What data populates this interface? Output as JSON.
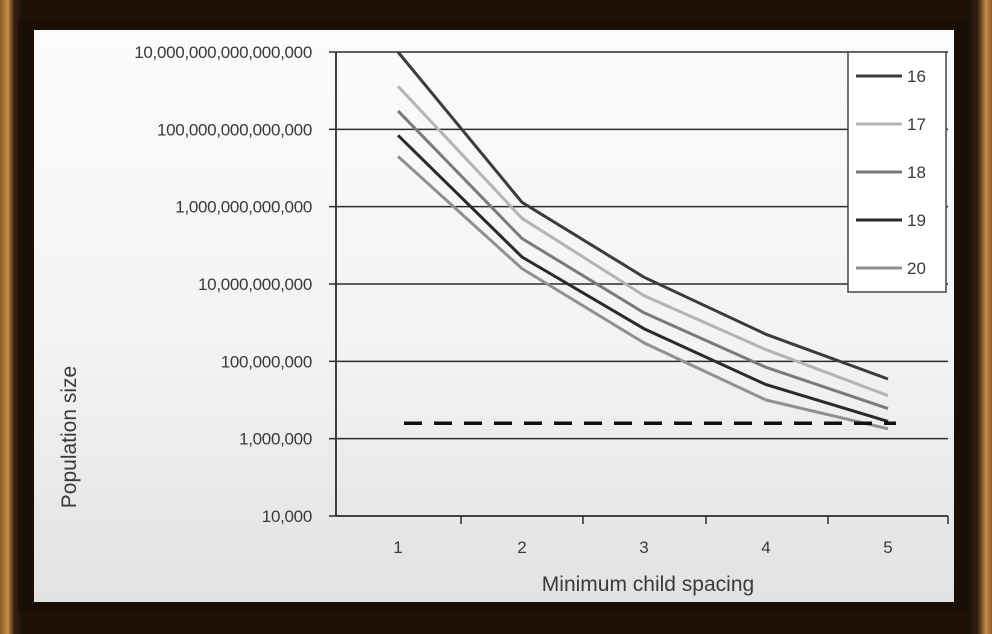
{
  "chart_data": {
    "type": "line",
    "title": "",
    "xlabel": "Minimum child spacing",
    "ylabel": "Population size",
    "x": [
      1,
      2,
      3,
      4,
      5
    ],
    "x_tick_labels": [
      "1",
      "2",
      "3",
      "4",
      "5"
    ],
    "y_scale": "log",
    "ylim": [
      10000,
      10000000000000000
    ],
    "y_tick_values": [
      10000,
      1000000,
      100000000,
      10000000000,
      1000000000000,
      100000000000000,
      10000000000000000
    ],
    "y_tick_labels": [
      "10,000",
      "1,000,000",
      "100,000,000",
      "10,000,000,000",
      "1,000,000,000,000",
      "100,000,000,000,000",
      "10,000,000,000,000,000"
    ],
    "grid": "horizontal",
    "legend_position": "top-right",
    "series": [
      {
        "name": "16",
        "color": "#3c3c3c",
        "values": [
          10000000000000000,
          1300000000000,
          15000000000,
          500000000,
          35000000
        ]
      },
      {
        "name": "17",
        "color": "#b4b4b4",
        "values": [
          1300000000000000,
          500000000000,
          5000000000,
          200000000,
          13000000
        ]
      },
      {
        "name": "18",
        "color": "#7a7a7a",
        "values": [
          300000000000000,
          150000000000,
          1800000000,
          70000000,
          6000000
        ]
      },
      {
        "name": "19",
        "color": "#2a2a2a",
        "values": [
          70000000000000,
          50000000000,
          700000000,
          25000000,
          2800000
        ]
      },
      {
        "name": "20",
        "color": "#909090",
        "values": [
          20000000000000,
          25000000000,
          300000000,
          10000000,
          1800000
        ]
      }
    ],
    "reference_line": {
      "style": "dashed",
      "color": "#111111",
      "x_start": 1,
      "x_end": 5,
      "value": 2500000
    }
  }
}
